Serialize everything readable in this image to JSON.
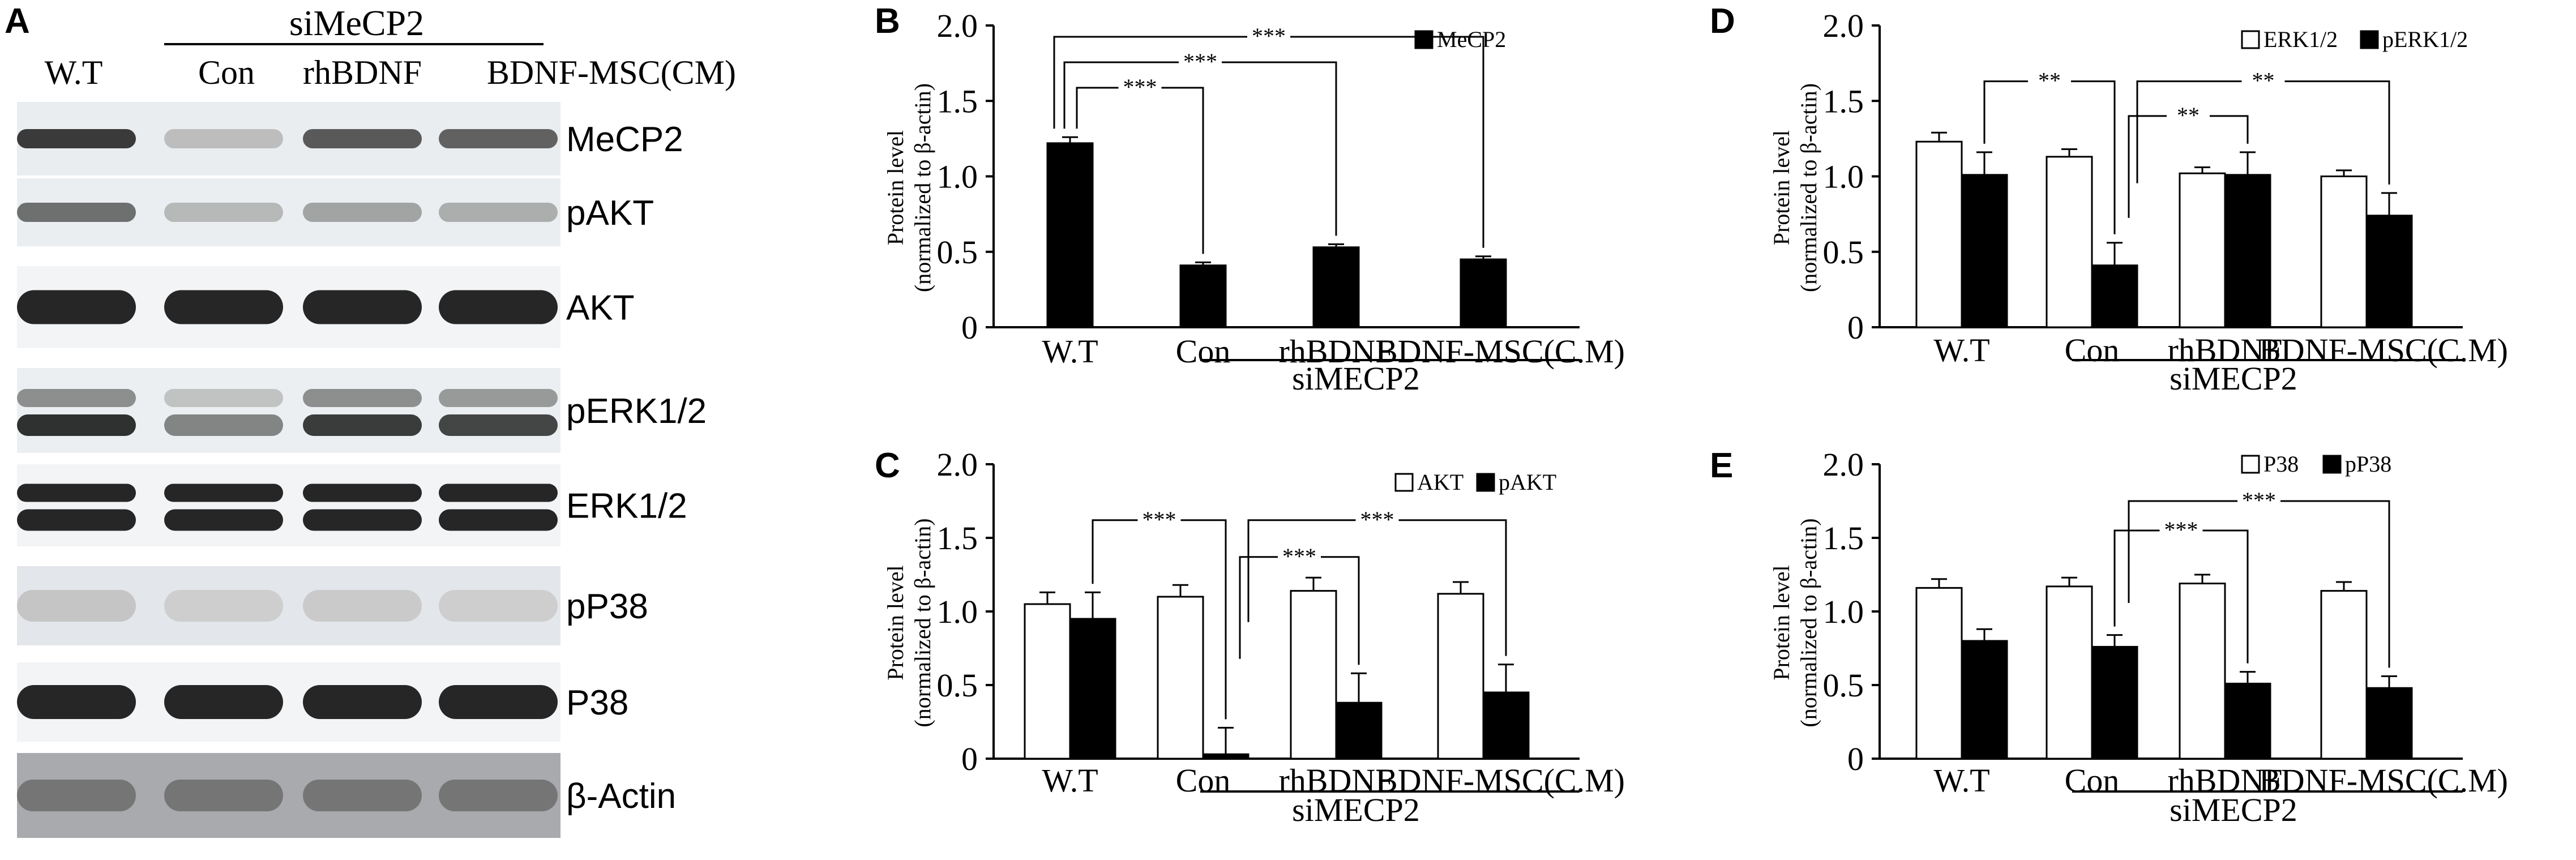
{
  "panel_letters": {
    "a": "A",
    "b": "B",
    "c": "C",
    "d": "D",
    "e": "E"
  },
  "blot": {
    "group_label": "siMeCP2",
    "lanes": [
      "W.T",
      "Con",
      "rhBDNF",
      "BDNF-MSC(CM)"
    ],
    "rows": [
      {
        "label": "MeCP2",
        "bg": "#e9edf0",
        "bands": [
          {
            "intensity": [
              0.85,
              0.22,
              0.7,
              0.66
            ],
            "shape": "single"
          }
        ]
      },
      {
        "label": "pAKT",
        "bg": "#eaeef1",
        "bands": [
          {
            "intensity": [
              0.6,
              0.25,
              0.35,
              0.3
            ],
            "shape": "single"
          }
        ]
      },
      {
        "label": "AKT",
        "bg": "#f2f4f6",
        "bands": [
          {
            "intensity": [
              0.95,
              0.95,
              0.95,
              0.95
            ],
            "shape": "thick"
          }
        ]
      },
      {
        "label": "pERK1/2",
        "bg": "#ebeff2",
        "bands": [
          {
            "intensity": [
              0.45,
              0.2,
              0.45,
              0.4
            ],
            "shape": "upper"
          },
          {
            "intensity": [
              0.9,
              0.5,
              0.85,
              0.8
            ],
            "shape": "lower"
          }
        ]
      },
      {
        "label": "ERK1/2",
        "bg": "#f2f4f6",
        "bands": [
          {
            "intensity": [
              0.95,
              0.95,
              0.95,
              0.95
            ],
            "shape": "upper"
          },
          {
            "intensity": [
              0.95,
              0.95,
              0.95,
              0.95
            ],
            "shape": "lower"
          }
        ]
      },
      {
        "label": "pP38",
        "bg": "#e3e6ea",
        "bands": [
          {
            "intensity": [
              0.18,
              0.14,
              0.16,
              0.14
            ],
            "shape": "faint"
          }
        ]
      },
      {
        "label": "P38",
        "bg": "#f2f4f6",
        "bands": [
          {
            "intensity": [
              0.95,
              0.95,
              0.95,
              0.95
            ],
            "shape": "thick"
          }
        ]
      },
      {
        "label": "β-Actin",
        "bg": "#a8aaad",
        "bands": [
          {
            "intensity": [
              0.55,
              0.55,
              0.55,
              0.55
            ],
            "shape": "faint"
          }
        ]
      }
    ]
  },
  "chart_data": [
    {
      "panel": "B",
      "type": "bar",
      "categories": [
        "W.T",
        "Con",
        "rhBDNF",
        "BDNF-MSC(C.M)"
      ],
      "series": [
        {
          "name": "MeCP2",
          "values": [
            1.22,
            0.41,
            0.53,
            0.45
          ],
          "errors": [
            0.04,
            0.02,
            0.02,
            0.02
          ],
          "fill": "#000000"
        }
      ],
      "ylabel": "Protein level",
      "ylabel2": "(normalized to β-actin)",
      "ylim": [
        0,
        2.0
      ],
      "yticks": [
        "0",
        "0.5",
        "1.0",
        "1.5",
        "2.0"
      ],
      "group_label": "siMECP2",
      "legend": "top-right",
      "significance": [
        {
          "from": "W.T",
          "to": "Con",
          "label": "***"
        },
        {
          "from": "W.T",
          "to": "rhBDNF",
          "label": "***"
        },
        {
          "from": "W.T",
          "to": "BDNF-MSC(C.M)",
          "label": "***"
        }
      ]
    },
    {
      "panel": "C",
      "type": "bar",
      "categories": [
        "W.T",
        "Con",
        "rhBDNF",
        "BDNF-MSC(C.M)"
      ],
      "series": [
        {
          "name": "AKT",
          "values": [
            1.05,
            1.1,
            1.14,
            1.12
          ],
          "errors": [
            0.08,
            0.08,
            0.09,
            0.08
          ],
          "fill": "#ffffff"
        },
        {
          "name": "pAKT",
          "values": [
            0.95,
            0.03,
            0.38,
            0.45
          ],
          "errors": [
            0.18,
            0.18,
            0.2,
            0.19
          ],
          "fill": "#000000"
        }
      ],
      "ylabel": "Protein level",
      "ylabel2": "(normalized to β-actin)",
      "ylim": [
        0,
        2.0
      ],
      "yticks": [
        "0",
        "0.5",
        "1.0",
        "1.5",
        "2.0"
      ],
      "group_label": "siMECP2",
      "legend": "top-right",
      "significance": [
        {
          "from": "W.T",
          "to": "Con",
          "label": "***"
        },
        {
          "from": "Con",
          "to": "rhBDNF",
          "label": "***"
        },
        {
          "from": "Con",
          "to": "BDNF-MSC(C.M)",
          "label": "***"
        }
      ]
    },
    {
      "panel": "D",
      "type": "bar",
      "categories": [
        "W.T",
        "Con",
        "rhBDNF",
        "BDNF-MSC(C.M)"
      ],
      "series": [
        {
          "name": "ERK1/2",
          "values": [
            1.23,
            1.13,
            1.02,
            1.0
          ],
          "errors": [
            0.06,
            0.05,
            0.04,
            0.04
          ],
          "fill": "#ffffff"
        },
        {
          "name": "pERK1/2",
          "values": [
            1.01,
            0.41,
            1.01,
            0.74
          ],
          "errors": [
            0.15,
            0.15,
            0.15,
            0.15
          ],
          "fill": "#000000"
        }
      ],
      "ylabel": "Protein level",
      "ylabel2": "(normalized to β-actin)",
      "ylim": [
        0,
        2.0
      ],
      "yticks": [
        "0",
        "0.5",
        "1.0",
        "1.5",
        "2.0"
      ],
      "group_label": "siMECP2",
      "legend": "top-right",
      "significance": [
        {
          "from": "W.T",
          "to": "Con",
          "label": "**"
        },
        {
          "from": "Con",
          "to": "rhBDNF",
          "label": "**"
        },
        {
          "from": "Con",
          "to": "BDNF-MSC(C.M)",
          "label": "**"
        }
      ]
    },
    {
      "panel": "E",
      "type": "bar",
      "categories": [
        "W.T",
        "Con",
        "rhBDNF",
        "BDNF-MSC(C.M)"
      ],
      "series": [
        {
          "name": "P38",
          "values": [
            1.16,
            1.17,
            1.19,
            1.14
          ],
          "errors": [
            0.06,
            0.06,
            0.06,
            0.06
          ],
          "fill": "#ffffff"
        },
        {
          "name": "pP38",
          "values": [
            0.8,
            0.76,
            0.51,
            0.48
          ],
          "errors": [
            0.08,
            0.08,
            0.08,
            0.08
          ],
          "fill": "#000000"
        }
      ],
      "ylabel": "Protein level",
      "ylabel2": "(normalized to β-actin)",
      "ylim": [
        0,
        2.0
      ],
      "yticks": [
        "0",
        "0.5",
        "1.0",
        "1.5",
        "2.0"
      ],
      "group_label": "siMECP2",
      "legend": "top-right",
      "significance": [
        {
          "from": "Con",
          "to": "rhBDNF",
          "label": "***"
        },
        {
          "from": "Con",
          "to": "BDNF-MSC(C.M)",
          "label": "***"
        }
      ]
    }
  ]
}
